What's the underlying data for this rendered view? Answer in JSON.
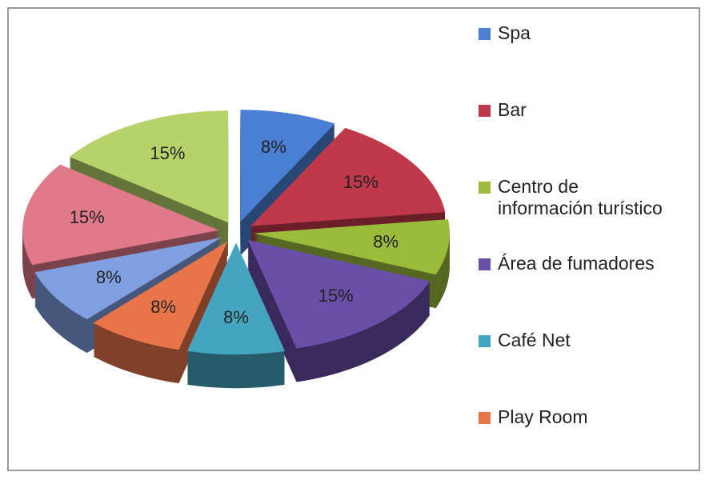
{
  "chart_data": {
    "type": "pie",
    "categories": [
      "Spa",
      "Bar",
      "Centro de información turístico",
      "Área de fumadores",
      "Café Net",
      "Play Room",
      null,
      null,
      null
    ],
    "values": [
      8,
      15,
      8,
      15,
      8,
      8,
      8,
      15,
      15
    ],
    "value_labels": [
      "8%",
      "15%",
      "8%",
      "15%",
      "8%",
      "8%",
      "8%",
      "15%",
      "15%"
    ],
    "colors": [
      "#4a7fd4",
      "#c0394b",
      "#9bbb3b",
      "#6a4fa8",
      "#45a5c0",
      "#e8744a",
      "#7f9fe0",
      "#e07a8a",
      "#b5d36a"
    ],
    "legend": "right"
  }
}
